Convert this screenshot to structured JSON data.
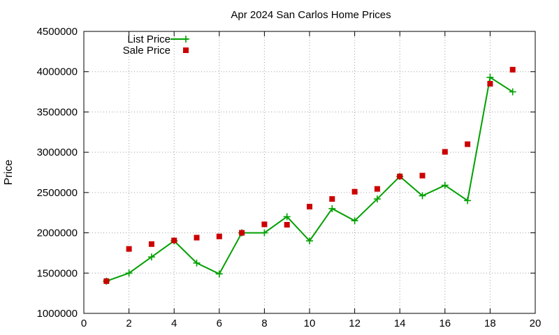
{
  "chart_data": {
    "type": "line",
    "title": "Apr 2024 San Carlos Home Prices",
    "xlabel": "",
    "ylabel": "Price",
    "xlim": [
      0,
      20
    ],
    "ylim": [
      1000000,
      4500000
    ],
    "x_ticks": [
      "0",
      "2",
      "4",
      "6",
      "8",
      "10",
      "12",
      "14",
      "16",
      "18",
      "20"
    ],
    "y_ticks": [
      "1000000",
      "1500000",
      "2000000",
      "2500000",
      "3000000",
      "3500000",
      "4000000",
      "4500000"
    ],
    "grid": true,
    "legend_position": "top-left",
    "series": [
      {
        "name": "List Price",
        "color": "#00a000",
        "style": "line-with-plus-markers",
        "x": [
          1,
          2,
          3,
          4,
          5,
          6,
          7,
          8,
          9,
          10,
          11,
          12,
          13,
          14,
          15,
          16,
          17,
          18,
          19
        ],
        "values": [
          1400000,
          1500000,
          1700000,
          1900000,
          1625000,
          1490000,
          2000000,
          2000000,
          2200000,
          1900000,
          2300000,
          2150000,
          2420000,
          2700000,
          2460000,
          2590000,
          2400000,
          3930000,
          3750000
        ]
      },
      {
        "name": "Sale Price",
        "color": "#cc0000",
        "style": "square-points",
        "x": [
          1,
          2,
          3,
          4,
          5,
          6,
          7,
          8,
          9,
          10,
          11,
          12,
          13,
          14,
          15,
          16,
          17,
          18,
          19
        ],
        "values": [
          1400000,
          1800000,
          1860000,
          1905000,
          1940000,
          1955000,
          2000000,
          2105000,
          2100000,
          2325000,
          2420000,
          2510000,
          2545000,
          2700000,
          2710000,
          3005000,
          3100000,
          3850000,
          4025000
        ]
      }
    ]
  }
}
